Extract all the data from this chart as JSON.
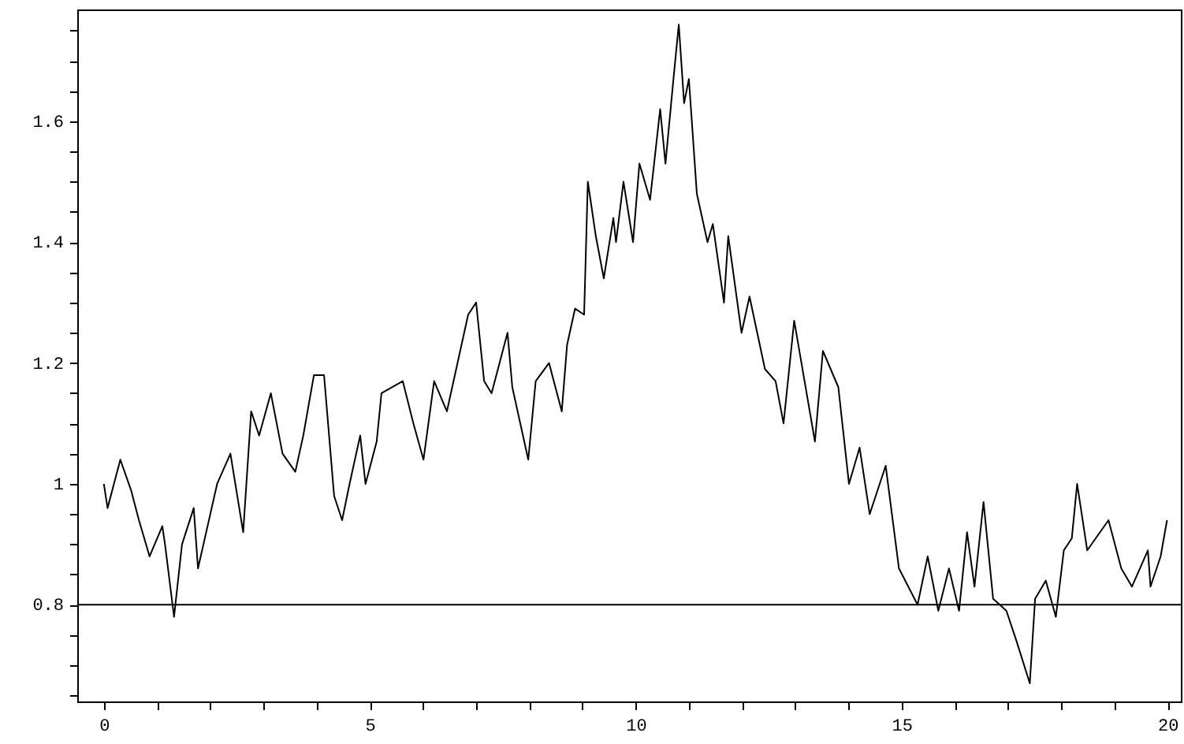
{
  "chart_data": {
    "type": "line",
    "xlim": [
      -0.5,
      20.25
    ],
    "ylim": [
      0.64,
      1.785
    ],
    "xticks": [
      0,
      {
        "value": 1,
        "label": null
      },
      {
        "value": 2,
        "label": null
      },
      {
        "value": 3,
        "label": null
      },
      {
        "value": 4,
        "label": null
      },
      5,
      {
        "value": 6,
        "label": null
      },
      {
        "value": 7,
        "label": null
      },
      {
        "value": 8,
        "label": null
      },
      {
        "value": 9,
        "label": null
      },
      10,
      {
        "value": 11,
        "label": null
      },
      {
        "value": 12,
        "label": null
      },
      {
        "value": 13,
        "label": null
      },
      {
        "value": 14,
        "label": null
      },
      15,
      {
        "value": 16,
        "label": null
      },
      {
        "value": 17,
        "label": null
      },
      {
        "value": 18,
        "label": null
      },
      {
        "value": 19,
        "label": null
      },
      20
    ],
    "yticks": [
      {
        "value": 0.65,
        "label": null
      },
      {
        "value": 0.7,
        "label": null
      },
      {
        "value": 0.75,
        "label": null
      },
      0.8,
      {
        "value": 0.85,
        "label": null
      },
      {
        "value": 0.9,
        "label": null
      },
      {
        "value": 0.95,
        "label": null
      },
      {
        "value": 1,
        "label": "1"
      },
      {
        "value": 1.05,
        "label": null
      },
      {
        "value": 1.1,
        "label": null
      },
      {
        "value": 1.15,
        "label": null
      },
      1.2,
      {
        "value": 1.25,
        "label": null
      },
      {
        "value": 1.3,
        "label": null
      },
      {
        "value": 1.35,
        "label": null
      },
      1.4,
      {
        "value": 1.45,
        "label": null
      },
      {
        "value": 1.5,
        "label": null
      },
      {
        "value": 1.55,
        "label": null
      },
      1.6,
      {
        "value": 1.65,
        "label": null
      },
      {
        "value": 1.7,
        "label": null
      },
      {
        "value": 1.75,
        "label": null
      }
    ],
    "grid": false,
    "marker": "none",
    "line_style": "solid",
    "ref_lines": [
      {
        "axis": "y",
        "value": 0.8,
        "color": "#000000"
      }
    ],
    "series": [
      {
        "color": "#000000",
        "x": [
          0,
          0.07,
          0.31,
          0.51,
          0.66,
          0.86,
          1.1,
          1.15,
          1.32,
          1.47,
          1.69,
          1.77,
          2.13,
          2.38,
          2.62,
          2.77,
          2.92,
          3.14,
          3.36,
          3.6,
          3.75,
          3.95,
          4.14,
          4.33,
          4.48,
          4.62,
          4.82,
          4.92,
          5.13,
          5.22,
          5.62,
          5.82,
          6.01,
          6.21,
          6.45,
          6.85,
          7.0,
          7.15,
          7.29,
          7.59,
          7.68,
          7.98,
          8.12,
          8.37,
          8.61,
          8.71,
          8.86,
          9.03,
          9.1,
          9.25,
          9.4,
          9.58,
          9.63,
          9.77,
          9.95,
          10.07,
          10.27,
          10.46,
          10.56,
          10.71,
          10.81,
          10.91,
          11.0,
          11.15,
          11.35,
          11.45,
          11.66,
          11.74,
          11.99,
          12.14,
          12.43,
          12.63,
          12.78,
          12.98,
          13.37,
          13.52,
          13.81,
          14.01,
          14.21,
          14.4,
          14.7,
          14.95,
          15.3,
          15.49,
          15.69,
          15.89,
          16.08,
          16.23,
          16.37,
          16.54,
          16.72,
          16.97,
          17.16,
          17.41,
          17.51,
          17.71,
          17.9,
          18.05,
          18.2,
          18.3,
          18.49,
          18.89,
          19.13,
          19.33,
          19.63,
          19.68,
          19.87,
          19.99
        ],
        "values": [
          1.0,
          0.96,
          1.04,
          0.99,
          0.94,
          0.88,
          0.93,
          0.9,
          0.78,
          0.9,
          0.96,
          0.86,
          1.0,
          1.05,
          0.92,
          1.12,
          1.08,
          1.15,
          1.05,
          1.02,
          1.08,
          1.18,
          1.18,
          0.98,
          0.94,
          1.0,
          1.08,
          1.0,
          1.07,
          1.15,
          1.17,
          1.1,
          1.04,
          1.17,
          1.12,
          1.28,
          1.3,
          1.17,
          1.15,
          1.25,
          1.16,
          1.04,
          1.17,
          1.2,
          1.12,
          1.23,
          1.29,
          1.28,
          1.5,
          1.41,
          1.34,
          1.44,
          1.4,
          1.5,
          1.4,
          1.53,
          1.47,
          1.62,
          1.53,
          1.67,
          1.76,
          1.63,
          1.67,
          1.48,
          1.4,
          1.43,
          1.3,
          1.41,
          1.25,
          1.31,
          1.19,
          1.17,
          1.1,
          1.27,
          1.07,
          1.22,
          1.16,
          1.0,
          1.06,
          0.95,
          1.03,
          0.86,
          0.8,
          0.88,
          0.79,
          0.86,
          0.79,
          0.92,
          0.83,
          0.97,
          0.81,
          0.79,
          0.74,
          0.67,
          0.81,
          0.84,
          0.78,
          0.89,
          0.91,
          1.0,
          0.89,
          0.94,
          0.86,
          0.83,
          0.89,
          0.83,
          0.88,
          0.94
        ]
      }
    ]
  }
}
